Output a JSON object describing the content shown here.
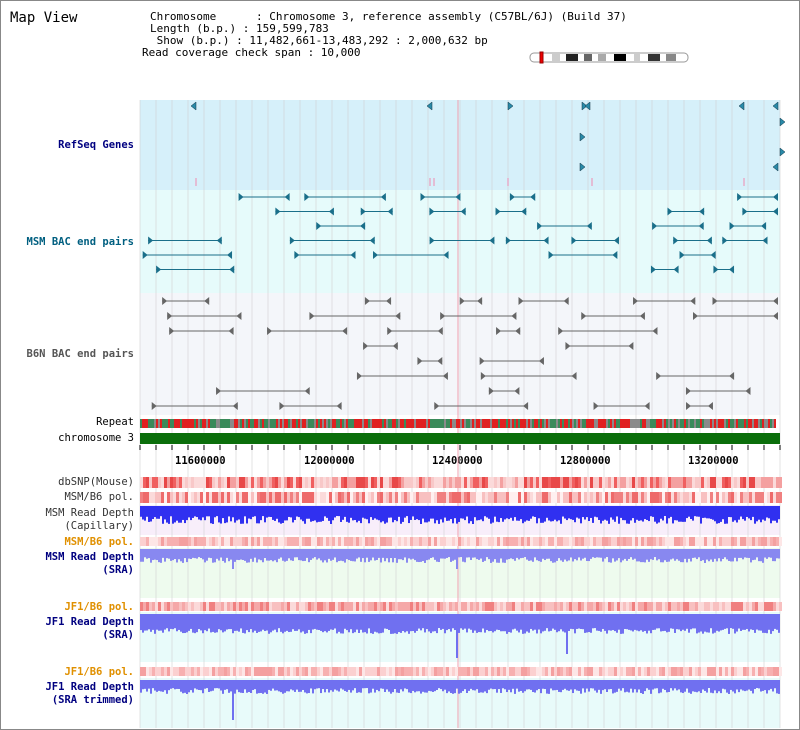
{
  "page": {
    "title": "Map View"
  },
  "header": {
    "chromosome_line": "Chromosome      : Chromosome 3, reference assembly (C57BL/6J) (Build 37)",
    "length_line": "Length (b.p.) : 159,599,783",
    "show_line": " Show (b.p.) : 11,482,661-13,483,292 : 2,000,632 bp",
    "coverage_line": "Read coverage check span : 10,000"
  },
  "tracks": {
    "refseq": "RefSeq Genes",
    "msm_bac": "MSM BAC end pairs",
    "b6n_bac": "B6N BAC end pairs",
    "repeat": "Repeat",
    "chromosome": "chromosome 3",
    "dbsnp": "dbSNP(Mouse)",
    "msm_b6_pol": "MSM/B6 pol.",
    "msm_read_cap": "MSM Read Depth\n(Capillary)",
    "msm_b6_pol2": "MSM/B6 pol.",
    "msm_read_sra": "MSM Read Depth\n(SRA)",
    "jf1_b6_pol": "JF1/B6 pol.",
    "jf1_read_sra": "JF1 Read Depth\n(SRA)",
    "jf1_b6_pol2": "JF1/B6 pol.",
    "jf1_read_trim": "JF1 Read Depth\n(SRA trimmed)"
  },
  "axis": {
    "ticks": [
      "11600000",
      "12000000",
      "12400000",
      "12800000",
      "13200000"
    ]
  },
  "colors": {
    "refseq_bg": "#d6f0fa",
    "msm_bg": "#e6fbfb",
    "b6n_bg": "#f4f6fa",
    "chromosome": "#0a6e0a",
    "blue_label": "#000080",
    "teal_label": "#005f80",
    "orange_label": "#e09000",
    "gray_label": "#555555"
  }
}
